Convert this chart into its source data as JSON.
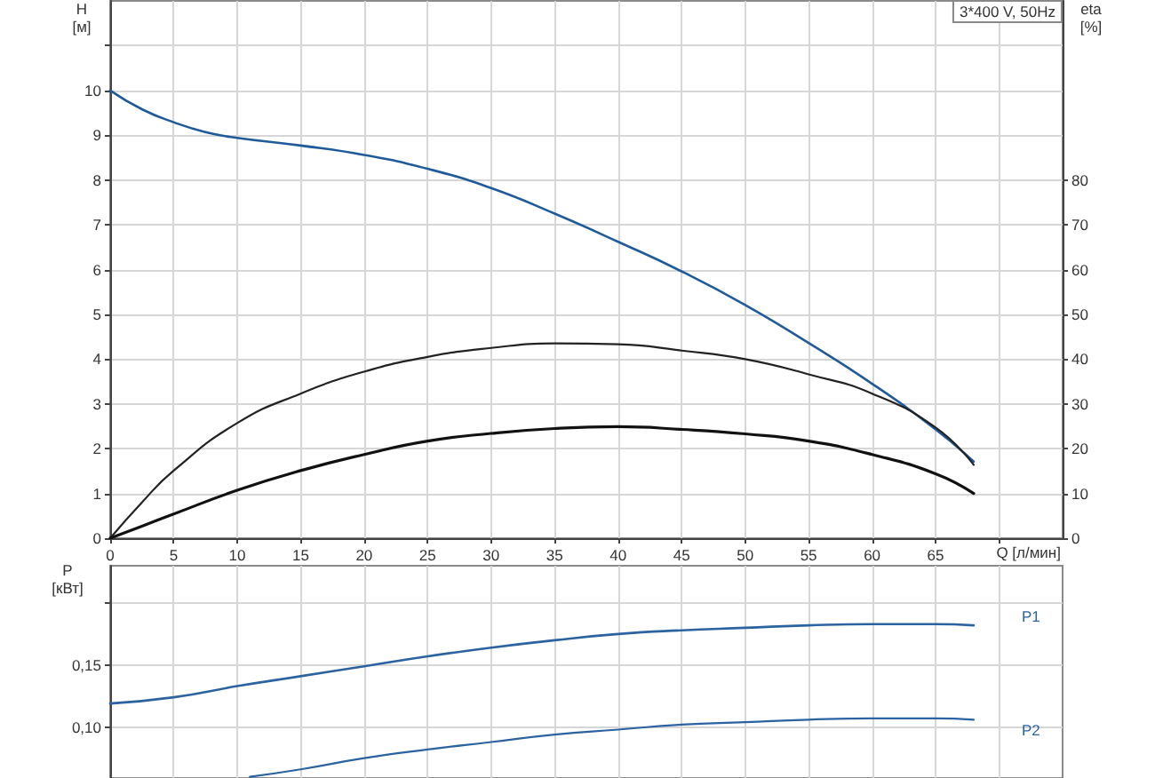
{
  "chart_data": [
    {
      "type": "line",
      "title": "3*400 V, 50Hz",
      "xlabel": "Q [л/мин]",
      "ylabel": "H [м]",
      "y2label": "eta [%]",
      "series": [
        {
          "color": "#1f5b9b",
          "x": [
            0,
            2.5,
            5,
            7.5,
            10,
            15,
            20,
            25,
            30,
            35,
            40,
            45,
            50,
            55,
            60,
            65,
            68
          ],
          "values": [
            10.0,
            9.58,
            9.29,
            9.07,
            8.94,
            8.77,
            8.56,
            8.25,
            7.82,
            7.25,
            6.62,
            5.96,
            5.21,
            4.36,
            3.45,
            2.43,
            1.71
          ]
        },
        {
          "color": "#222222",
          "axis": "y2",
          "x": [
            0,
            2.5,
            5,
            10,
            15,
            20,
            25,
            30,
            35,
            40,
            45,
            50,
            55,
            60,
            65,
            68
          ],
          "values": [
            0,
            8,
            15.1,
            25.7,
            32.3,
            37.2,
            40.5,
            42.5,
            43.5,
            43.3,
            41.9,
            40.0,
            36.6,
            32.3,
            24.7,
            16.4
          ]
        },
        {
          "color": "#111111",
          "axis": "y2",
          "x": [
            0,
            2.5,
            5,
            10,
            15,
            20,
            25,
            30,
            35,
            40,
            45,
            50,
            55,
            60,
            65,
            68
          ],
          "values": [
            0,
            2.7,
            5.4,
            10.7,
            15.1,
            18.7,
            21.7,
            23.4,
            24.5,
            24.9,
            24.3,
            23.3,
            21.7,
            18.7,
            14.4,
            10.0
          ]
        }
      ],
      "xlim": [
        0,
        75
      ],
      "xticks": [
        0,
        5,
        10,
        15,
        20,
        25,
        30,
        35,
        40,
        45,
        50,
        55,
        60,
        65,
        {
          "value": 70,
          "label": null
        }
      ],
      "ylim": [
        0,
        12
      ],
      "yticks": [
        0,
        1,
        2,
        3,
        4,
        5,
        6,
        7,
        8,
        9,
        10,
        {
          "value": 11,
          "label": null
        }
      ],
      "y2lim": [
        0,
        120
      ],
      "y2ticks": [
        0,
        10,
        20,
        30,
        40,
        50,
        60,
        70,
        80
      ],
      "grid": true,
      "marker": "none",
      "line_style": "solid"
    },
    {
      "type": "line",
      "ylabel": "P [кВт]",
      "series": [
        {
          "name": "P1",
          "color": "#2a639f",
          "x": [
            0,
            5,
            10,
            15,
            20,
            25,
            30,
            35,
            40,
            45,
            50,
            55,
            60,
            65,
            68
          ],
          "values": [
            0.119,
            0.124,
            0.133,
            0.141,
            0.149,
            0.157,
            0.164,
            0.17,
            0.175,
            0.178,
            0.18,
            0.182,
            0.183,
            0.183,
            0.182
          ]
        },
        {
          "name": "P2",
          "color": "#2a639f",
          "x": [
            11,
            15,
            20,
            25,
            30,
            35,
            40,
            45,
            50,
            55,
            60,
            65,
            68
          ],
          "values": [
            0.06,
            0.066,
            0.075,
            0.082,
            0.088,
            0.094,
            0.098,
            0.102,
            0.104,
            0.106,
            0.107,
            0.107,
            0.106
          ]
        }
      ],
      "xlim": [
        0,
        75
      ],
      "xticks": [
        0,
        5,
        10,
        15,
        20,
        25,
        30,
        35,
        40,
        45,
        50,
        55,
        60,
        65,
        {
          "value": 70,
          "label": null
        }
      ],
      "ylim": [
        0.059,
        0.23
      ],
      "yticks": [
        {
          "value": 0.1,
          "label": "0,10"
        },
        {
          "value": 0.15,
          "label": "0,15"
        },
        {
          "value": 0.2,
          "label": null
        }
      ],
      "tick_labels": "y",
      "grid": true,
      "marker": "none",
      "line_style": "solid"
    }
  ]
}
